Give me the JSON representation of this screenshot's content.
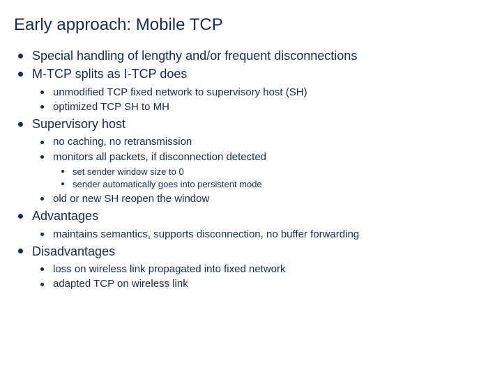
{
  "title": "Early approach: Mobile TCP",
  "colors": {
    "text": "#1a2a4a",
    "background": "#ffffff",
    "bullet": "#1a2a4a"
  },
  "typography": {
    "title_fontsize": 24,
    "lvl1_fontsize": 18,
    "lvl2_fontsize": 15,
    "lvl3_fontsize": 13,
    "font_family": "Verdana"
  },
  "bullets": {
    "b1": "Special handling of lengthy and/or frequent disconnections",
    "b2": "M-TCP splits as I-TCP does",
    "b2_1": "unmodified TCP fixed network to supervisory host (SH)",
    "b2_2": "optimized TCP SH to MH",
    "b3": "Supervisory host",
    "b3_1": "no caching, no retransmission",
    "b3_2": "monitors all packets, if disconnection detected",
    "b3_2_1": "set sender window size to 0",
    "b3_2_2": "sender automatically goes into persistent mode",
    "b3_3": "old or new SH reopen the window",
    "b4": "Advantages",
    "b4_1": "maintains semantics, supports disconnection, no buffer forwarding",
    "b5": "Disadvantages",
    "b5_1": "loss on wireless link propagated into fixed network",
    "b5_2": "adapted TCP on wireless link"
  }
}
